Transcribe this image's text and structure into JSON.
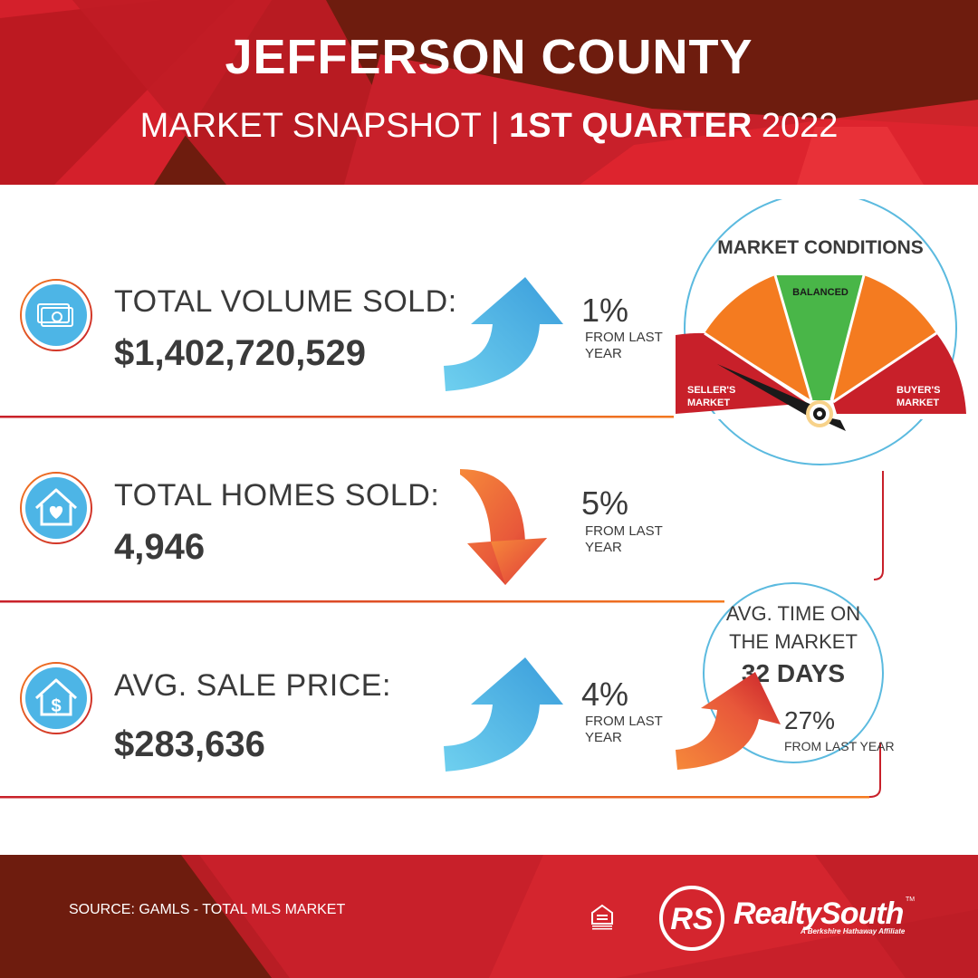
{
  "header": {
    "title": "JEFFERSON COUNTY",
    "subtitle_prefix": "MARKET SNAPSHOT | ",
    "subtitle_quarter": "1ST QUARTER",
    "subtitle_year": " 2022"
  },
  "metrics": [
    {
      "label": "TOTAL VOLUME SOLD:",
      "value": "$1,402,720,529",
      "change_pct": "1%",
      "direction": "up",
      "from_text": "FROM LAST YEAR",
      "icon": "money-bills-icon"
    },
    {
      "label": "TOTAL HOMES SOLD:",
      "value": "4,946",
      "change_pct": "5%",
      "direction": "down",
      "from_text": "FROM LAST YEAR",
      "icon": "house-heart-icon"
    },
    {
      "label": "AVG. SALE PRICE:",
      "value": "$283,636",
      "change_pct": "4%",
      "direction": "up",
      "from_text": "FROM LAST YEAR",
      "icon": "house-dollar-icon"
    }
  ],
  "gauge": {
    "title": "MARKET CONDITIONS",
    "segments": [
      "SELLER'S MARKET",
      "BALANCED",
      "BUYER'S MARKET"
    ],
    "needle_position": "seller's market"
  },
  "time_on_market": {
    "title": "AVG. TIME ON THE MARKET",
    "days": "32 DAYS",
    "change_pct": "27%",
    "from_text": "FROM LAST YEAR",
    "direction": "up"
  },
  "footer": {
    "source": "SOURCE: GAMLS - TOTAL MLS MARKET",
    "brand_name": "RealtySouth",
    "brand_tagline": "A Berkshire Hathaway Affiliate",
    "brand_mark": "RS",
    "trademark": "TM",
    "equal_housing_icon": "equal-housing-opportunity-icon"
  },
  "colors": {
    "dark_red": "#6e1c0e",
    "red": "#c8202a",
    "orange": "#f47b20",
    "green": "#49b648",
    "blue": "#3aa8dd",
    "light_blue": "#5bc3ea",
    "text": "#3a3a3a"
  }
}
